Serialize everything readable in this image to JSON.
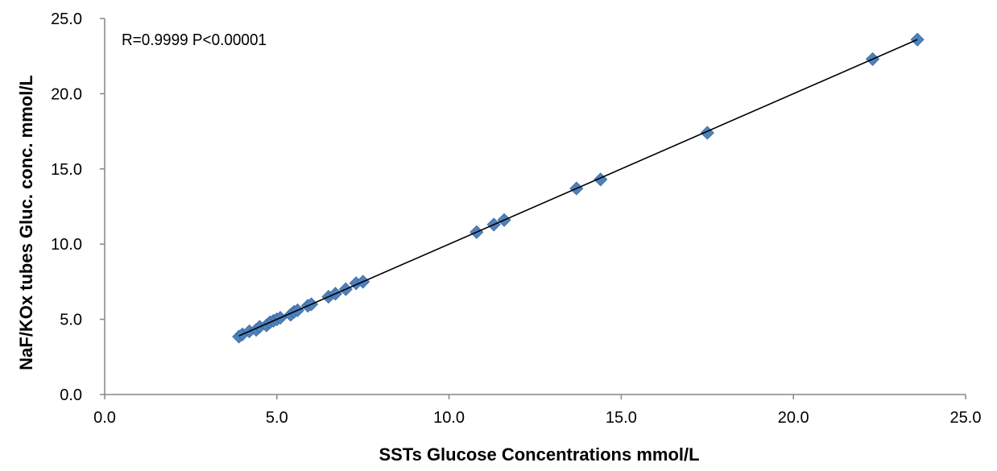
{
  "chart_data": {
    "type": "scatter",
    "title": "",
    "annotation": "R=0.9999  P<0.00001",
    "xlabel": "SSTs Glucose Concentrations mmol/L",
    "ylabel": "NaF/KOx tubes Gluc. conc. mmol/L",
    "xlim": [
      0,
      25
    ],
    "ylim": [
      0,
      25
    ],
    "x_ticks": [
      "0.0",
      "5.0",
      "10.0",
      "15.0",
      "20.0",
      "25.0"
    ],
    "y_ticks": [
      "0.0",
      "5.0",
      "10.0",
      "15.0",
      "20.0",
      "25.0"
    ],
    "grid": false,
    "legend": "none",
    "marker": "diamond",
    "marker_color": "#4F81BD",
    "trendline_color": "#000000",
    "trendline": {
      "x": [
        3.9,
        23.6
      ],
      "y": [
        3.9,
        23.6
      ]
    },
    "series": [
      {
        "points": [
          {
            "x": 3.9,
            "y": 3.85
          },
          {
            "x": 4.0,
            "y": 4.0
          },
          {
            "x": 4.2,
            "y": 4.2
          },
          {
            "x": 4.4,
            "y": 4.3
          },
          {
            "x": 4.5,
            "y": 4.5
          },
          {
            "x": 4.7,
            "y": 4.6
          },
          {
            "x": 4.8,
            "y": 4.8
          },
          {
            "x": 4.9,
            "y": 4.9
          },
          {
            "x": 5.0,
            "y": 5.0
          },
          {
            "x": 5.1,
            "y": 5.1
          },
          {
            "x": 5.4,
            "y": 5.3
          },
          {
            "x": 5.5,
            "y": 5.5
          },
          {
            "x": 5.6,
            "y": 5.6
          },
          {
            "x": 5.9,
            "y": 5.9
          },
          {
            "x": 6.0,
            "y": 6.0
          },
          {
            "x": 6.5,
            "y": 6.5
          },
          {
            "x": 6.7,
            "y": 6.7
          },
          {
            "x": 7.0,
            "y": 7.0
          },
          {
            "x": 7.3,
            "y": 7.4
          },
          {
            "x": 7.5,
            "y": 7.5
          },
          {
            "x": 10.8,
            "y": 10.8
          },
          {
            "x": 11.3,
            "y": 11.3
          },
          {
            "x": 11.6,
            "y": 11.6
          },
          {
            "x": 13.7,
            "y": 13.7
          },
          {
            "x": 14.4,
            "y": 14.3
          },
          {
            "x": 17.5,
            "y": 17.4
          },
          {
            "x": 22.3,
            "y": 22.3
          },
          {
            "x": 23.6,
            "y": 23.6
          }
        ]
      }
    ]
  }
}
